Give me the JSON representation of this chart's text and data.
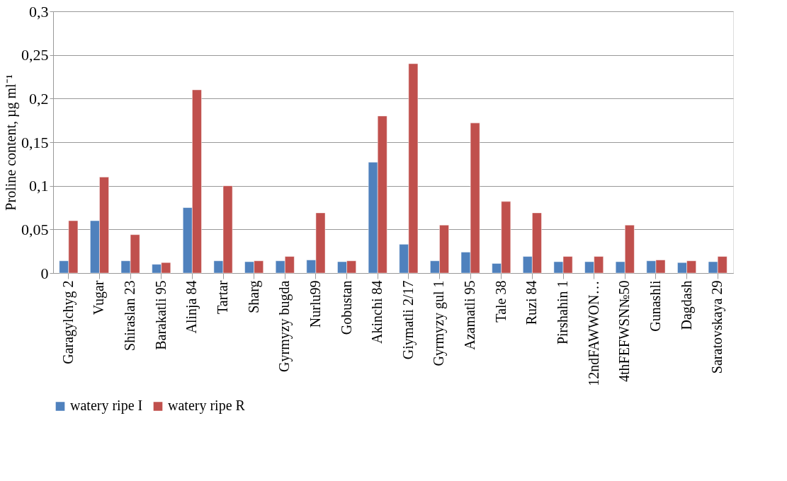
{
  "chart_data": {
    "type": "bar",
    "ylabel": "Proline content, µg ml⁻¹",
    "categories": [
      "Garagylchyg 2",
      "Vugar",
      "Shiraslan 23",
      "Barakatli 95",
      "Alinja 84",
      "Tartar",
      "Sharg",
      "Gyrmyzy bugda",
      "Nurlu99",
      "Gobustan",
      "Akinchi 84",
      "Giymatli 2/17",
      "Gyrmyzy gul 1",
      "Azamatli 95",
      "Tale 38",
      "Ruzi 84",
      "Pirshahin 1",
      "12ndFAWWON…",
      "4thFEFWSN№50",
      "Gunashli",
      "Dagdash",
      "Saratovskaya 29"
    ],
    "series": [
      {
        "name": "watery ripe I",
        "color": "#4f81bd",
        "values": [
          0.014,
          0.06,
          0.014,
          0.01,
          0.075,
          0.014,
          0.013,
          0.014,
          0.015,
          0.013,
          0.127,
          0.033,
          0.014,
          0.024,
          0.011,
          0.019,
          0.013,
          0.013,
          0.013,
          0.014,
          0.012,
          0.013
        ]
      },
      {
        "name": "watery ripe R",
        "color": "#c0504d",
        "values": [
          0.06,
          0.11,
          0.044,
          0.012,
          0.21,
          0.1,
          0.014,
          0.019,
          0.069,
          0.014,
          0.18,
          0.24,
          0.055,
          0.172,
          0.082,
          0.069,
          0.019,
          0.019,
          0.055,
          0.015,
          0.014,
          0.019
        ]
      }
    ],
    "ylim": [
      0,
      0.3
    ],
    "yticks": [
      {
        "value": 0,
        "label": "0"
      },
      {
        "value": 0.05,
        "label": "0,05"
      },
      {
        "value": 0.1,
        "label": "0,1"
      },
      {
        "value": 0.15,
        "label": "0,15"
      },
      {
        "value": 0.2,
        "label": "0,2"
      },
      {
        "value": 0.25,
        "label": "0,25"
      },
      {
        "value": 0.3,
        "label": "0,3"
      }
    ],
    "grid": "y",
    "legend": "bottom"
  }
}
